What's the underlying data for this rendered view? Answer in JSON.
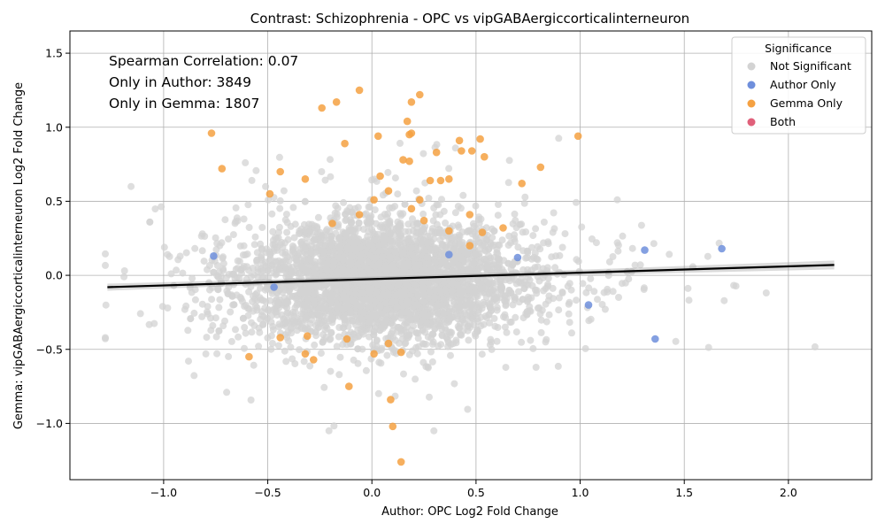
{
  "chart_data": {
    "type": "scatter",
    "title": "Contrast: Schizophrenia - OPC vs vipGABAergiccorticalinterneuron",
    "xlabel": "Author: OPC Log2 Fold Change",
    "ylabel": "Gemma: vipGABAergiccorticalinterneuron Log2 Fold Change",
    "xlim": [
      -1.45,
      2.4
    ],
    "ylim": [
      -1.38,
      1.65
    ],
    "x_ticks": [
      -1.0,
      -0.5,
      0.0,
      0.5,
      1.0,
      1.5,
      2.0
    ],
    "x_tick_labels": [
      "−1.0",
      "−0.5",
      "0.0",
      "0.5",
      "1.0",
      "1.5",
      "2.0"
    ],
    "y_ticks": [
      -1.0,
      -0.5,
      0.0,
      0.5,
      1.0,
      1.5
    ],
    "y_tick_labels": [
      "−1.0",
      "−0.5",
      "0.0",
      "0.5",
      "1.0",
      "1.5"
    ],
    "grid": true,
    "annotations": [
      "Spearman Correlation: 0.07",
      "Only in Author: 3849",
      "Only in Gemma: 1807"
    ],
    "legend": {
      "title": "Significance",
      "position": "top-right",
      "entries": [
        "Not Significant",
        "Author Only",
        "Gemma Only",
        "Both"
      ]
    },
    "colors": {
      "not_significant": "#d3d3d3",
      "author_only": "#6f8fdc",
      "gemma_only": "#f5a142",
      "both": "#e0607a",
      "regression": "#000000"
    },
    "regression_line": {
      "x": [
        -1.27,
        2.22
      ],
      "y": [
        -0.08,
        0.07
      ]
    },
    "series": [
      {
        "name": "Gemma Only",
        "points": [
          [
            -0.77,
            0.96
          ],
          [
            -0.72,
            0.72
          ],
          [
            -0.44,
            0.7
          ],
          [
            -0.32,
            0.65
          ],
          [
            -0.49,
            0.55
          ],
          [
            -0.24,
            1.13
          ],
          [
            -0.17,
            1.17
          ],
          [
            -0.06,
            1.25
          ],
          [
            0.19,
            1.17
          ],
          [
            0.23,
            1.22
          ],
          [
            0.17,
            1.04
          ],
          [
            0.18,
            0.95
          ],
          [
            0.19,
            0.96
          ],
          [
            0.03,
            0.94
          ],
          [
            -0.13,
            0.89
          ],
          [
            0.15,
            0.78
          ],
          [
            0.18,
            0.77
          ],
          [
            0.31,
            0.83
          ],
          [
            0.42,
            0.91
          ],
          [
            0.43,
            0.84
          ],
          [
            0.48,
            0.84
          ],
          [
            0.52,
            0.92
          ],
          [
            0.54,
            0.8
          ],
          [
            0.99,
            0.94
          ],
          [
            0.81,
            0.73
          ],
          [
            0.72,
            0.62
          ],
          [
            0.28,
            0.64
          ],
          [
            0.33,
            0.64
          ],
          [
            0.37,
            0.65
          ],
          [
            0.04,
            0.67
          ],
          [
            0.08,
            0.57
          ],
          [
            0.23,
            0.51
          ],
          [
            0.01,
            0.51
          ],
          [
            -0.06,
            0.41
          ],
          [
            -0.19,
            0.35
          ],
          [
            0.19,
            0.45
          ],
          [
            0.25,
            0.37
          ],
          [
            0.47,
            0.41
          ],
          [
            0.53,
            0.29
          ],
          [
            0.37,
            0.3
          ],
          [
            -0.31,
            -0.41
          ],
          [
            -0.44,
            -0.42
          ],
          [
            -0.59,
            -0.55
          ],
          [
            -0.32,
            -0.53
          ],
          [
            -0.28,
            -0.57
          ],
          [
            -0.11,
            -0.75
          ],
          [
            0.08,
            -0.46
          ],
          [
            0.14,
            -0.52
          ],
          [
            0.09,
            -0.84
          ],
          [
            0.1,
            -1.02
          ],
          [
            0.14,
            -1.26
          ],
          [
            0.01,
            -0.53
          ],
          [
            0.63,
            0.32
          ],
          [
            0.47,
            0.2
          ],
          [
            -0.12,
            -0.43
          ]
        ]
      },
      {
        "name": "Author Only",
        "points": [
          [
            -0.76,
            0.13
          ],
          [
            1.68,
            0.18
          ],
          [
            1.31,
            0.17
          ],
          [
            0.7,
            0.12
          ],
          [
            1.04,
            -0.2
          ],
          [
            1.36,
            -0.43
          ],
          [
            -0.47,
            -0.08
          ],
          [
            0.37,
            0.14
          ]
        ]
      },
      {
        "name": "Both",
        "points": []
      }
    ]
  }
}
